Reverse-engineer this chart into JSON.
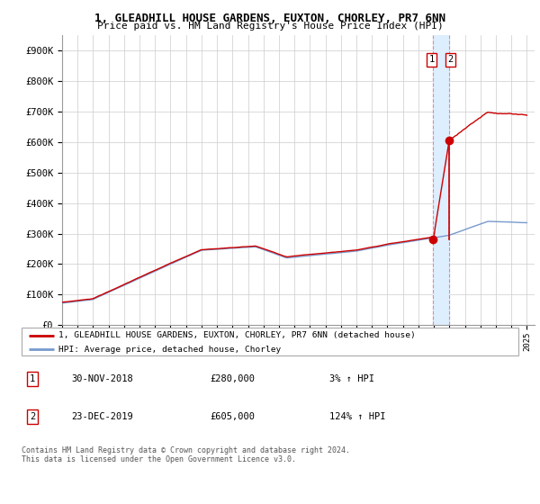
{
  "title1": "1, GLEADHILL HOUSE GARDENS, EUXTON, CHORLEY, PR7 6NN",
  "title2": "Price paid vs. HM Land Registry's House Price Index (HPI)",
  "hpi_label": "HPI: Average price, detached house, Chorley",
  "property_label": "1, GLEADHILL HOUSE GARDENS, EUXTON, CHORLEY, PR7 6NN (detached house)",
  "transaction1_date": "30-NOV-2018",
  "transaction1_price": 280000,
  "transaction1_pct": "3%",
  "transaction2_date": "23-DEC-2019",
  "transaction2_price": 605000,
  "transaction2_pct": "124%",
  "footer": "Contains HM Land Registry data © Crown copyright and database right 2024.\nThis data is licensed under the Open Government Licence v3.0.",
  "hpi_color": "#7799cc",
  "property_color": "#cc0000",
  "highlight_color": "#ddeeff",
  "dashed_line_color": "#ee8888",
  "ylim": [
    0,
    950000
  ],
  "yticks": [
    0,
    100000,
    200000,
    300000,
    400000,
    500000,
    600000,
    700000,
    800000,
    900000
  ],
  "start_year": 1995,
  "end_year": 2025,
  "transaction1_x": 2018.92,
  "transaction2_x": 2019.98
}
